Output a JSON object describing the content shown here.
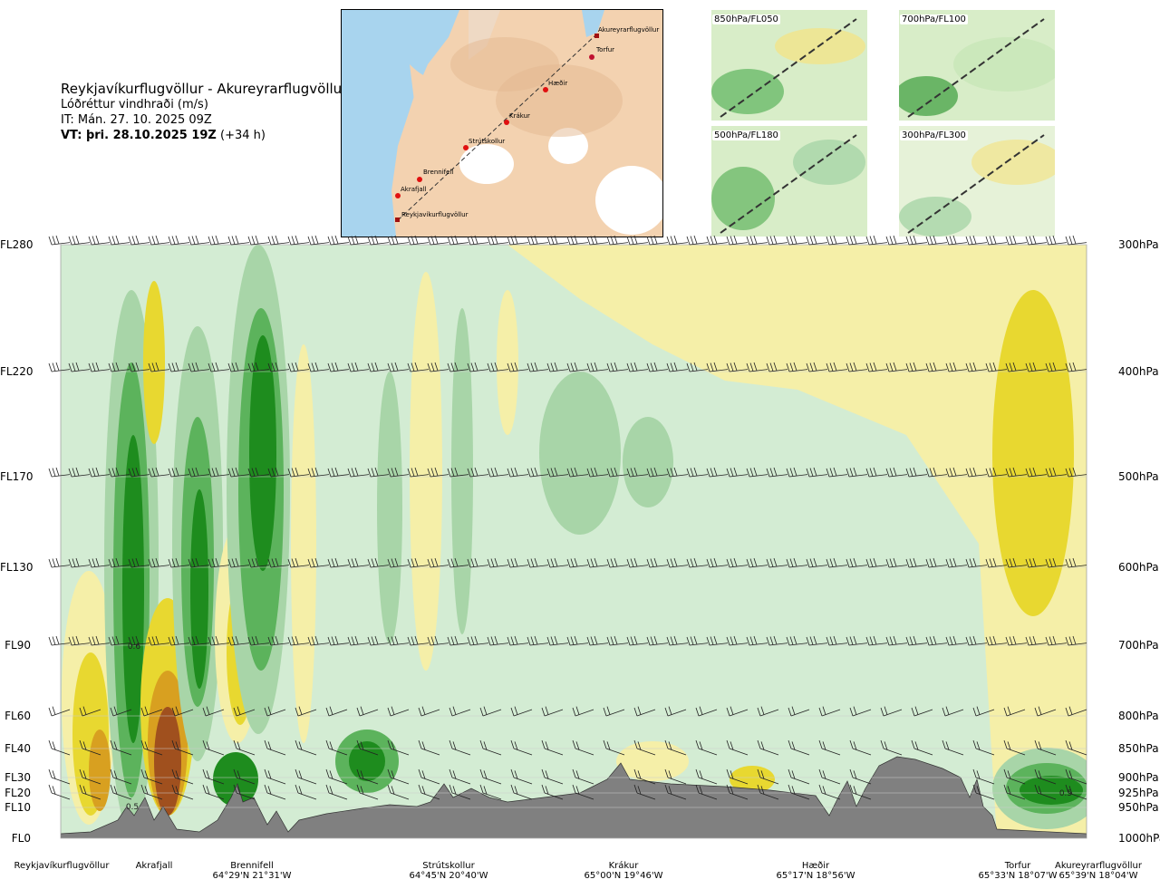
{
  "header": {
    "route": "Reykjavíkurflugvöllur - Akureyrarflugvöllur",
    "parameter": "Lóðréttur vindhraði (m/s)",
    "issue_time": "IT: Mán. 27. 10. 2025 09Z",
    "valid_label": "VT: þri. 28.10.2025 19Z",
    "valid_offset": "(+34 h)"
  },
  "route_map": {
    "stations": [
      "Akureyrarflugvöllur",
      "Torfur",
      "Hæðir",
      "Krákur",
      "Strútskollur",
      "Brennifell",
      "Akrafjall",
      "Reykjavíkurflugvöllur"
    ]
  },
  "mini_maps": [
    {
      "label": "850hPa/FL050"
    },
    {
      "label": "700hPa/FL100"
    },
    {
      "label": "500hPa/FL180"
    },
    {
      "label": "300hPa/FL300"
    }
  ],
  "chart_data": {
    "type": "heatmap",
    "left_axis_ticks": [
      "FL280",
      "FL220",
      "FL170",
      "FL130",
      "FL90",
      "FL60",
      "FL40",
      "FL30",
      "FL20",
      "FL10",
      "FL0"
    ],
    "right_axis_ticks": [
      "300hPa",
      "400hPa",
      "500hPa",
      "600hPa",
      "700hPa",
      "800hPa",
      "850hPa",
      "900hPa",
      "925hPa",
      "950hPa",
      "1000hPa"
    ],
    "pressure_levels_hpa": [
      300,
      400,
      500,
      600,
      700,
      800,
      850,
      900,
      925,
      950,
      1000
    ],
    "waypoints": [
      {
        "name": "Reykjavíkurflugvöllur",
        "coord": ""
      },
      {
        "name": "Akrafjall",
        "coord": ""
      },
      {
        "name": "Brennifell",
        "coord": "64°29'N 21°31'W"
      },
      {
        "name": "Strútskollur",
        "coord": "64°45'N 20°40'W"
      },
      {
        "name": "Krákur",
        "coord": "65°00'N 19°46'W"
      },
      {
        "name": "Hæðir",
        "coord": "65°17'N 18°56'W"
      },
      {
        "name": "Torfur",
        "coord": "65°33'N 18°07'W"
      },
      {
        "name": "Akureyrarflugvöllur",
        "coord": "65°39'N 18°04'W"
      }
    ],
    "contour_labels": [
      "0.6",
      "0.5",
      "0.5"
    ],
    "colors": {
      "strong_down": "#1e8c1e",
      "down": "#5cb35c",
      "weak_down": "#a8d5a8",
      "very_weak_down": "#d3ecd3",
      "very_weak_up": "#f5efa8",
      "up": "#e8d830",
      "strong_up": "#d8a020",
      "very_strong_up": "#a0501e",
      "terrain": "#808080"
    }
  }
}
